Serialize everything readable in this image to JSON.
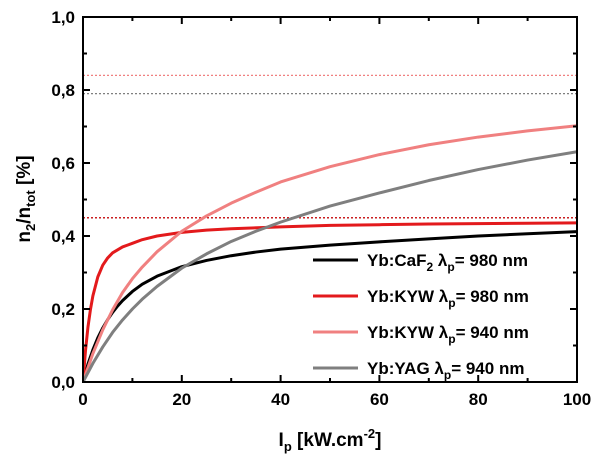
{
  "chart_data": {
    "type": "line",
    "xlabel": {
      "main": "I",
      "sub": "p",
      "rest": " [kW.cm",
      "sup": "-2",
      "end": "]"
    },
    "ylabel": {
      "n": "n",
      "sub1": "2",
      "slash": "/n",
      "sub2": "tot",
      "unit": " [%]"
    },
    "xlim": [
      0,
      100
    ],
    "ylim": [
      0,
      1
    ],
    "x_ticks": [
      0,
      20,
      40,
      60,
      80,
      100
    ],
    "x_tick_labels": [
      "0",
      "20",
      "40",
      "60",
      "80",
      "100"
    ],
    "y_ticks": [
      0,
      0.2,
      0.4,
      0.6,
      0.8,
      1.0
    ],
    "y_tick_labels": [
      "0,0",
      "0,2",
      "0,4",
      "0,6",
      "0,8",
      "1,0"
    ],
    "grid": false,
    "legend_position": "bottom-right",
    "series": [
      {
        "legend": {
          "host": "Yb:CaF",
          "host_sub": "2",
          "lambda": " λ",
          "lambda_sub": "p",
          "value": "= 980 nm"
        },
        "color": "#000000",
        "asymptote": 0.45,
        "x": [
          0,
          1,
          2,
          3,
          4,
          5,
          6,
          7,
          8,
          10,
          12,
          15,
          20,
          25,
          30,
          35,
          40,
          50,
          60,
          70,
          80,
          90,
          100
        ],
        "y": [
          0,
          0.049,
          0.088,
          0.121,
          0.148,
          0.171,
          0.191,
          0.208,
          0.223,
          0.248,
          0.268,
          0.29,
          0.316,
          0.333,
          0.346,
          0.356,
          0.364,
          0.375,
          0.384,
          0.392,
          0.4,
          0.406,
          0.412
        ]
      },
      {
        "legend": {
          "host": "Yb:KYW",
          "host_sub": "",
          "lambda": " λ",
          "lambda_sub": "p",
          "value": "= 980 nm"
        },
        "color": "#e31a1c",
        "asymptote": 0.45,
        "x": [
          0,
          0.5,
          1,
          1.5,
          2,
          3,
          4,
          5,
          6,
          8,
          10,
          12,
          15,
          20,
          25,
          30,
          40,
          50,
          60,
          70,
          80,
          90,
          100
        ],
        "y": [
          0,
          0.085,
          0.15,
          0.198,
          0.236,
          0.288,
          0.32,
          0.34,
          0.354,
          0.37,
          0.38,
          0.39,
          0.4,
          0.41,
          0.416,
          0.42,
          0.425,
          0.429,
          0.431,
          0.433,
          0.434,
          0.435,
          0.436
        ]
      },
      {
        "legend": {
          "host": "Yb:KYW",
          "host_sub": "",
          "lambda": " λ",
          "lambda_sub": "p",
          "value": "= 940 nm"
        },
        "color": "#f08080",
        "asymptote": 0.84,
        "x": [
          0,
          2,
          4,
          6,
          8,
          10,
          12,
          15,
          20,
          25,
          30,
          35,
          40,
          50,
          60,
          70,
          80,
          90,
          100
        ],
        "y": [
          0,
          0.078,
          0.143,
          0.198,
          0.245,
          0.283,
          0.315,
          0.357,
          0.413,
          0.455,
          0.49,
          0.52,
          0.548,
          0.59,
          0.623,
          0.65,
          0.671,
          0.688,
          0.702
        ]
      },
      {
        "legend": {
          "host": "Yb:YAG",
          "host_sub": "",
          "lambda": " λ",
          "lambda_sub": "p",
          "value": "= 940 nm"
        },
        "color": "#7f7f7f",
        "asymptote": 0.79,
        "x": [
          0,
          2,
          4,
          6,
          8,
          10,
          12,
          15,
          20,
          25,
          30,
          35,
          40,
          50,
          60,
          70,
          80,
          90,
          100
        ],
        "y": [
          0,
          0.051,
          0.096,
          0.136,
          0.17,
          0.2,
          0.227,
          0.262,
          0.312,
          0.351,
          0.385,
          0.413,
          0.438,
          0.482,
          0.518,
          0.552,
          0.582,
          0.608,
          0.631
        ]
      }
    ]
  }
}
